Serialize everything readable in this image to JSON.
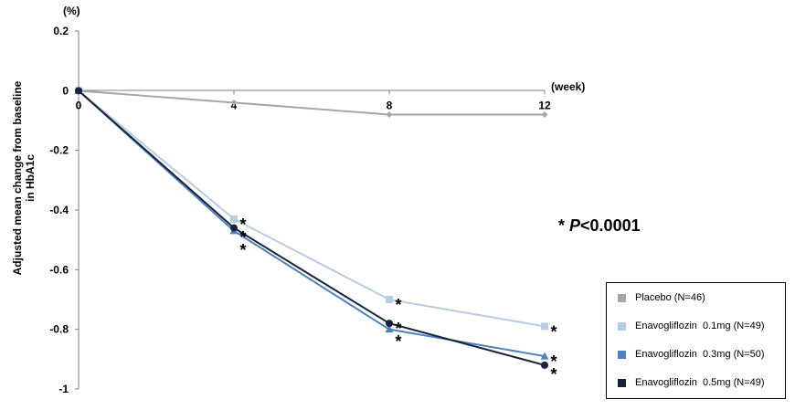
{
  "chart_data": {
    "type": "line",
    "ylabel": "Adjusted mean change from baseline in HbA1c",
    "ylabel_lines": [
      "Adjusted mean change from baseline",
      "in HbA1c"
    ],
    "y_unit": "(%)",
    "x_unit": "(week)",
    "x": [
      0,
      4,
      8,
      12
    ],
    "x_tick_labels": [
      "0",
      "4",
      "8",
      "12"
    ],
    "y_ticks": [
      0.2,
      0,
      -0.2,
      -0.4,
      -0.6,
      -0.8,
      -1
    ],
    "y_tick_labels": [
      "0.2",
      "0",
      "-0.2",
      "-0.4",
      "-0.6",
      "-0.8",
      "-1"
    ],
    "ylim": [
      -1,
      0.2
    ],
    "xlim": [
      0,
      12
    ],
    "grid": false,
    "legend_position": "bottom-right",
    "series": [
      {
        "name": "Placebo (N=46)",
        "color": "#a6a6a6",
        "marker": "diamond",
        "values": [
          0,
          -0.04,
          -0.08,
          -0.08
        ],
        "significant": [
          false,
          false,
          false,
          false
        ]
      },
      {
        "name": "Enavogliflozin  0.1mg (N=49)",
        "color": "#b8cce4",
        "marker": "square",
        "values": [
          0,
          -0.43,
          -0.7,
          -0.79
        ],
        "significant": [
          false,
          true,
          true,
          true
        ]
      },
      {
        "name": "Enavogliflozin  0.3mg (N=50)",
        "color": "#4f81bd",
        "marker": "triangle",
        "values": [
          0,
          -0.47,
          -0.8,
          -0.89
        ],
        "significant": [
          false,
          true,
          true,
          true
        ]
      },
      {
        "name": "Enavogliflozin  0.5mg (N=49)",
        "color": "#17243d",
        "marker": "circle",
        "values": [
          0,
          -0.46,
          -0.78,
          -0.92
        ],
        "significant": [
          false,
          true,
          true,
          true
        ]
      }
    ],
    "annotation": {
      "star": "*",
      "p_prefix": "* ",
      "p_italic": "P",
      "p_value": "<0.0001"
    }
  }
}
